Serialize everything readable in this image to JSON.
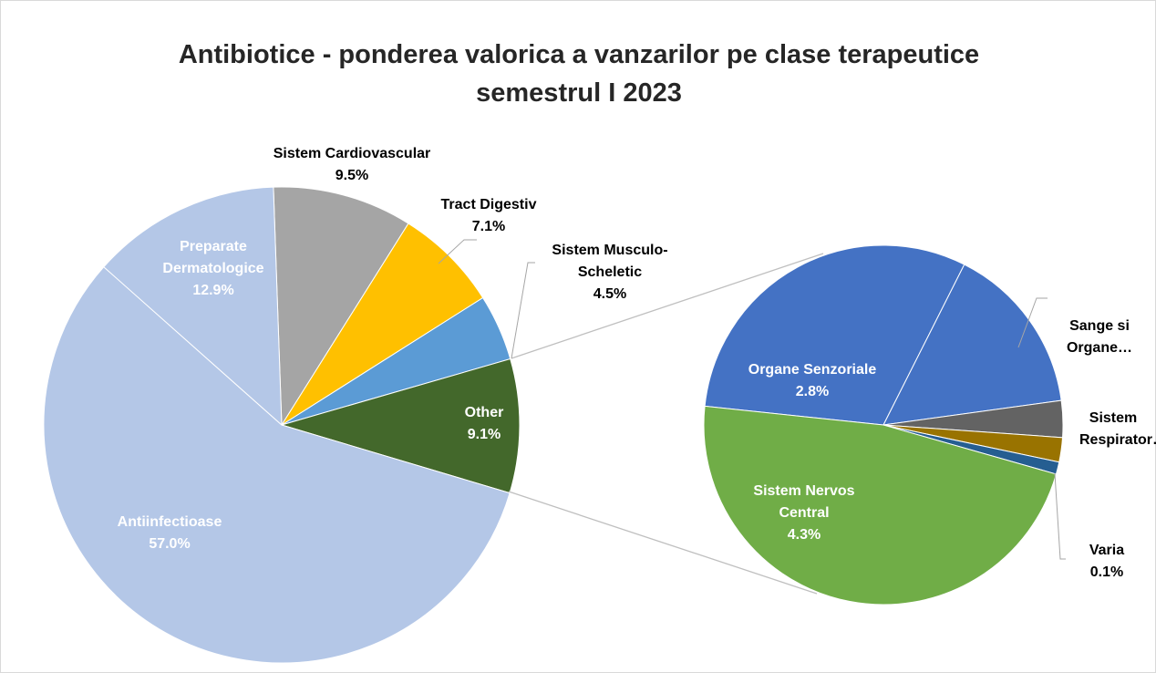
{
  "chart_data": [
    {
      "type": "pie",
      "title": "Antibiotice - ponderea valorica a vanzarilor pe clase terapeutice semestrul I 2023",
      "categories": [
        "Sistem Cardiovascular",
        "Tract Digestiv",
        "Sistem Musculo-Scheletic",
        "Other",
        "Antiinfectioase",
        "Preparate Dermatologice"
      ],
      "values": [
        9.5,
        7.1,
        4.5,
        9.1,
        57.0,
        12.9
      ],
      "value_labels": [
        "9.5%",
        "7.1%",
        "4.5%",
        "9.1%",
        "57.0%",
        "12.9%"
      ],
      "colors": [
        "#a5a5a5",
        "#ffc000",
        "#5b9bd5",
        "#43682b",
        "#b4c7e7",
        "#b4c7e7"
      ]
    },
    {
      "type": "pie",
      "categories": [
        "Organe Senzoriale",
        "Sange si Organe…",
        null,
        "Sistem Respirator…",
        "Varia",
        "Sistem Nervos Central"
      ],
      "values": [
        2.8,
        1.4,
        0.3,
        0.2,
        0.1,
        4.3
      ],
      "value_labels": [
        "2.8%",
        null,
        null,
        null,
        "0.1%",
        "4.3%"
      ],
      "colors": [
        "#4472c4",
        "#4472c4",
        "#636363",
        "#997300",
        "#255e91",
        "#70ad47"
      ]
    }
  ]
}
